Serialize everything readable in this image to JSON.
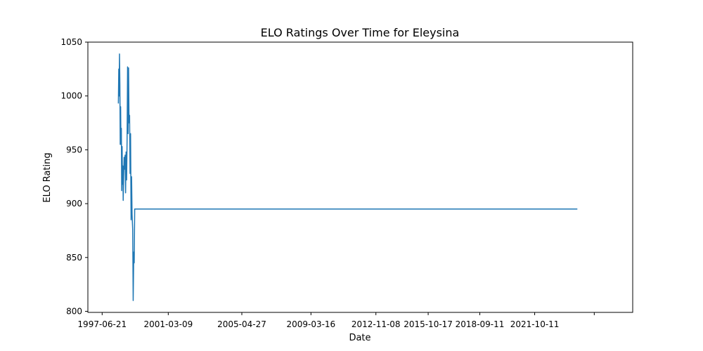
{
  "chart_data": {
    "type": "line",
    "title": "ELO Ratings Over Time for Eleysina",
    "xlabel": "Date",
    "ylabel": "ELO Rating",
    "grid": false,
    "legend": "none",
    "line_color": "#1f77b4",
    "xlim": [
      "1996-09-01",
      "2027-04-15"
    ],
    "ylim": [
      799,
      1050
    ],
    "x_ticks": [
      "1997-06-21",
      "2001-03-09",
      "2005-04-27",
      "2009-03-16",
      "2012-11-08",
      "2015-10-17",
      "2018-09-11",
      "2021-10-11",
      ""
    ],
    "x_tick_dates": [
      "1997-06-21",
      "2001-03-09",
      "2005-04-27",
      "2009-03-16",
      "2012-11-08",
      "2015-10-17",
      "2018-09-11",
      "2021-10-11",
      "2025-02-15"
    ],
    "y_ticks": [
      800,
      850,
      900,
      950,
      1000,
      1050
    ],
    "series": [
      {
        "name": "",
        "points": [
          [
            "1998-05-20",
            993
          ],
          [
            "1998-05-28",
            1025
          ],
          [
            "1998-06-05",
            1000
          ],
          [
            "1998-06-12",
            1039
          ],
          [
            "1998-06-20",
            1010
          ],
          [
            "1998-06-27",
            955
          ],
          [
            "1998-07-05",
            990
          ],
          [
            "1998-07-12",
            955
          ],
          [
            "1998-07-20",
            970
          ],
          [
            "1998-07-27",
            912
          ],
          [
            "1998-08-05",
            953
          ],
          [
            "1998-08-12",
            918
          ],
          [
            "1998-08-20",
            935
          ],
          [
            "1998-08-27",
            903
          ],
          [
            "1998-09-05",
            925
          ],
          [
            "1998-09-15",
            943
          ],
          [
            "1998-09-25",
            932
          ],
          [
            "1998-10-05",
            945
          ],
          [
            "1998-10-15",
            910
          ],
          [
            "1998-10-25",
            948
          ],
          [
            "1998-11-05",
            922
          ],
          [
            "1998-11-15",
            960
          ],
          [
            "1998-11-25",
            1027
          ],
          [
            "1998-12-05",
            965
          ],
          [
            "1998-12-15",
            1026
          ],
          [
            "1998-12-25",
            975
          ],
          [
            "1999-01-05",
            982
          ],
          [
            "1999-01-15",
            928
          ],
          [
            "1999-01-25",
            965
          ],
          [
            "1999-02-05",
            885
          ],
          [
            "1999-02-15",
            925
          ],
          [
            "1999-02-25",
            890
          ],
          [
            "1999-03-10",
            876
          ],
          [
            "1999-03-20",
            810
          ],
          [
            "1999-04-01",
            855
          ],
          [
            "1999-04-10",
            845
          ],
          [
            "1999-04-20",
            895
          ],
          [
            "2024-03-05",
            895
          ]
        ]
      }
    ]
  }
}
